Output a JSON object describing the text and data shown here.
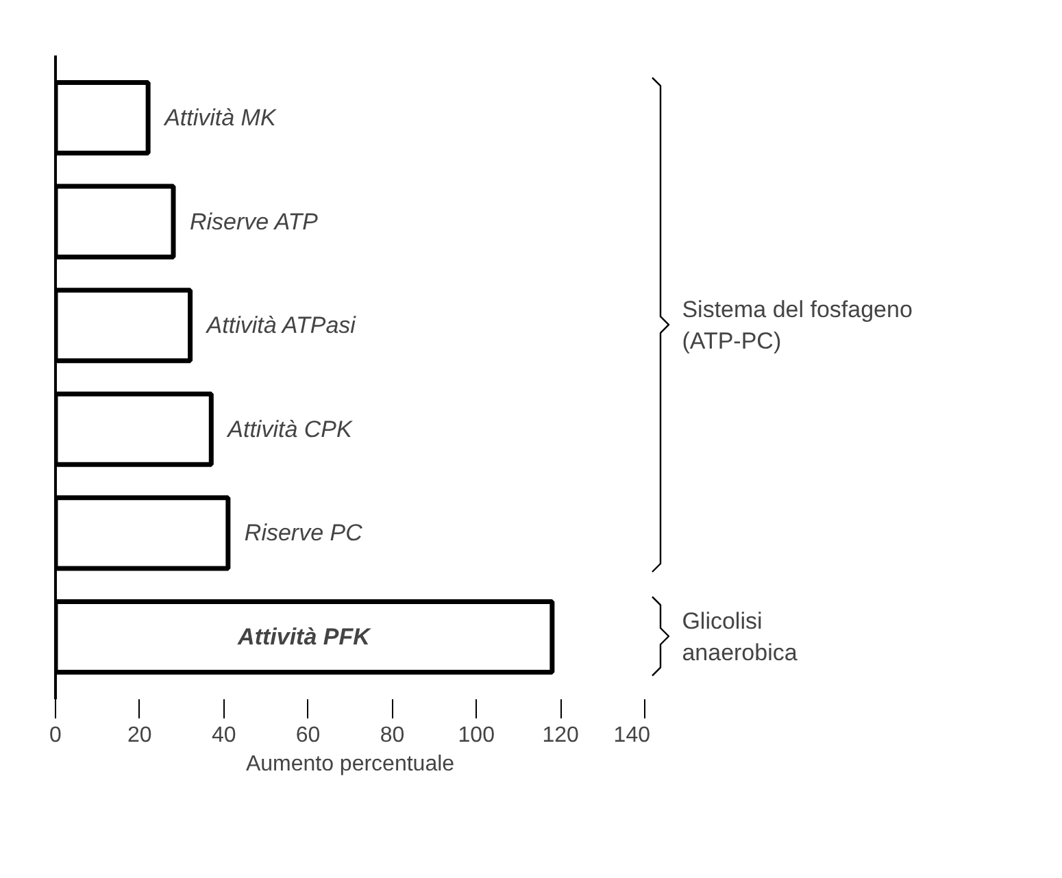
{
  "chart_data": {
    "type": "bar",
    "orientation": "horizontal",
    "categories": [
      "Attività MK",
      "Riserve ATP",
      "Attività ATPasi",
      "Attività CPK",
      "Riserve PC",
      "Attività PFK"
    ],
    "values": [
      22,
      28,
      32,
      37,
      41,
      118
    ],
    "color": "#ffffff",
    "xlabel": "Aumento percentuale",
    "xlim": [
      0,
      140
    ],
    "xticks": [
      0,
      20,
      40,
      60,
      80,
      100,
      120,
      140
    ],
    "tick_labels": "x",
    "grid": false,
    "annotations": [
      "Sistema del fosfageno\n(ATP-PC)",
      "Glicolisi\nanaerobica"
    ]
  }
}
